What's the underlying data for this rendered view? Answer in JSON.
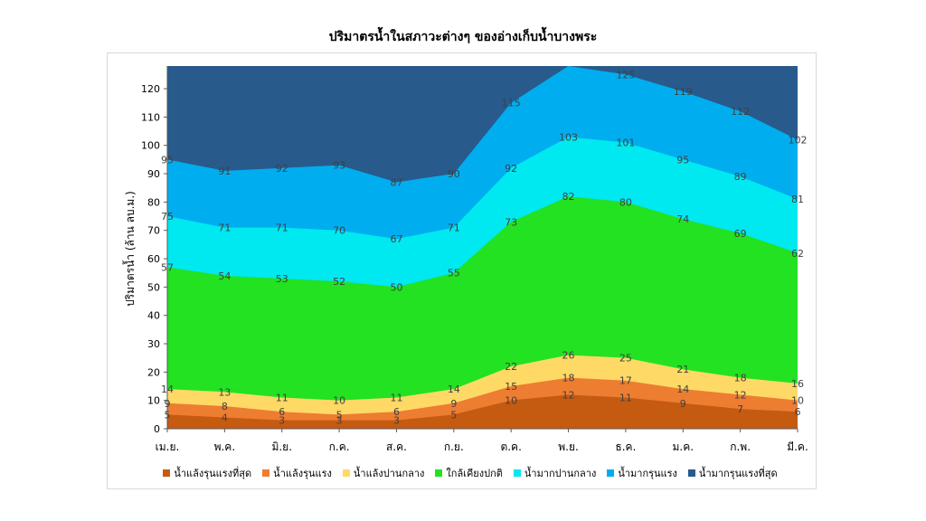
{
  "chart_data": {
    "type": "area",
    "stacked": true,
    "title": "ปริมาตรน้ำในสภาวะต่างๆ ของอ่างเก็บน้ำบางพระ",
    "ylabel": "ปริมาตรน้ำ (ล้าน ลบ.ม.)",
    "xlabel": "",
    "ylim": [
      0,
      128
    ],
    "yticks": [
      0,
      10,
      20,
      30,
      40,
      50,
      60,
      70,
      80,
      90,
      100,
      110,
      120
    ],
    "grid": false,
    "legend_position": "bottom",
    "categories": [
      "เม.ย.",
      "พ.ค.",
      "มิ.ย.",
      "ก.ค.",
      "ส.ค.",
      "ก.ย.",
      "ต.ค.",
      "พ.ย.",
      "ธ.ค.",
      "ม.ค.",
      "ก.พ.",
      "มี.ค."
    ],
    "series": [
      {
        "name": "น้ำแล้งรุนแรงที่สุด",
        "color": "#c55a11",
        "values": [
          5,
          4,
          3,
          3,
          3,
          5,
          10,
          12,
          11,
          9,
          7,
          6
        ],
        "labels": [
          "5",
          "4",
          "3",
          "3",
          "3",
          "5",
          "10",
          "12",
          "11",
          "9",
          "7",
          "6"
        ]
      },
      {
        "name": "น้ำแล้งรุนแรง",
        "color": "#ed7d31",
        "values": [
          9,
          8,
          6,
          5,
          6,
          9,
          15,
          18,
          17,
          14,
          12,
          10
        ],
        "labels": [
          "9",
          "8",
          "6",
          "5",
          "6",
          "9",
          "15",
          "18",
          "17",
          "14",
          "12",
          "10"
        ]
      },
      {
        "name": "น้ำแล้งปานกลาง",
        "color": "#ffd966",
        "values": [
          14,
          13,
          11,
          10,
          11,
          14,
          22,
          26,
          25,
          21,
          18,
          16
        ],
        "labels": [
          "14",
          "13",
          "11",
          "10",
          "11",
          "14",
          "22",
          "26",
          "25",
          "21",
          "18",
          "16"
        ]
      },
      {
        "name": "ใกล้เคียงปกติ",
        "color": "#22e222",
        "values": [
          57,
          54,
          53,
          52,
          50,
          55,
          73,
          82,
          80,
          74,
          69,
          62
        ],
        "labels": [
          "57",
          "54",
          "53",
          "52",
          "50",
          "55",
          "73",
          "82",
          "80",
          "74",
          "69",
          "62"
        ]
      },
      {
        "name": "น้ำมากปานกลาง",
        "color": "#00e8f0",
        "values": [
          75,
          71,
          71,
          70,
          67,
          71,
          92,
          103,
          101,
          95,
          89,
          81
        ],
        "labels": [
          "75",
          "71",
          "71",
          "70",
          "67",
          "71",
          "92",
          "103",
          "101",
          "95",
          "89",
          "81"
        ]
      },
      {
        "name": "น้ำมากรุนแรง",
        "color": "#00aeef",
        "values": [
          95,
          91,
          92,
          93,
          87,
          90,
          115,
          128,
          125,
          119,
          112,
          102
        ],
        "labels": [
          "95",
          "91",
          "92",
          "93",
          "87",
          "90",
          "115",
          "",
          "125",
          "119",
          "112",
          "102"
        ]
      },
      {
        "name": "น้ำมากรุนแรงที่สุด",
        "color": "#285a8c",
        "values": [
          128,
          128,
          128,
          128,
          128,
          128,
          128,
          128,
          128,
          128,
          128,
          128
        ],
        "labels": []
      }
    ]
  }
}
